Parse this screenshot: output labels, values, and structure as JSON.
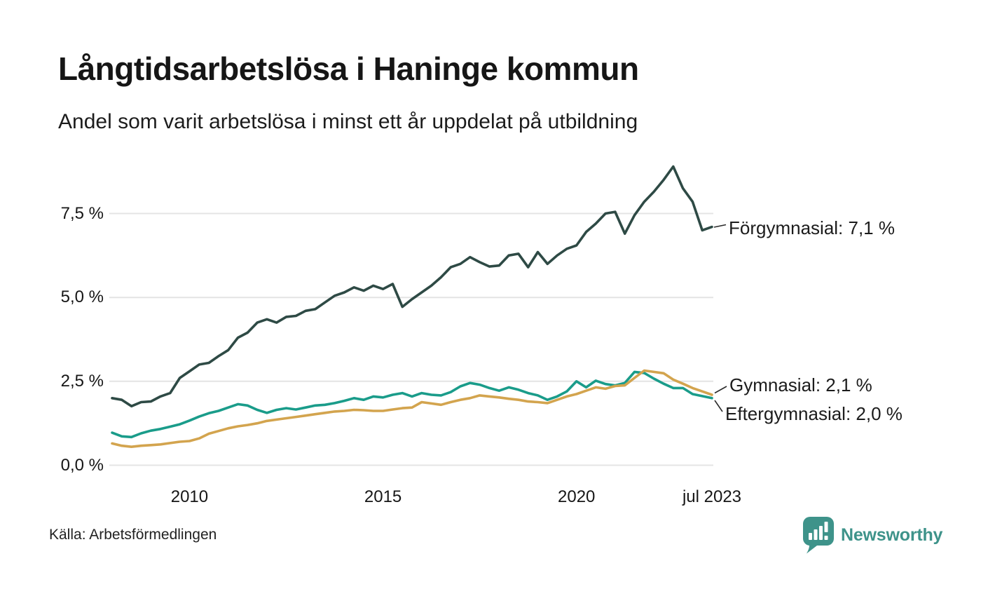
{
  "header": {
    "title": "Långtidsarbetslösa i Haninge kommun",
    "subtitle": "Andel som varit arbetslösa i minst ett år uppdelat på utbildning"
  },
  "source": {
    "label": "Källa: Arbetsförmedlingen"
  },
  "branding": {
    "name": "Newsworthy",
    "color": "#3e938a",
    "icon": "newsworthy-speech-bubble-bar-chart-icon"
  },
  "chart_data": {
    "type": "line",
    "title": "Långtidsarbetslösa i Haninge kommun",
    "subtitle": "Andel som varit arbetslösa i minst ett år uppdelat på utbildning",
    "unit": "%",
    "grid": "horizontal",
    "legend": "end-of-line-labels",
    "xlim": [
      2008,
      2023.5
    ],
    "ylim": [
      0,
      9.3
    ],
    "x": [
      2008.0,
      2008.25,
      2008.5,
      2008.75,
      2009.0,
      2009.25,
      2009.5,
      2009.75,
      2010.0,
      2010.25,
      2010.5,
      2010.75,
      2011.0,
      2011.25,
      2011.5,
      2011.75,
      2012.0,
      2012.25,
      2012.5,
      2012.75,
      2013.0,
      2013.25,
      2013.5,
      2013.75,
      2014.0,
      2014.25,
      2014.5,
      2014.75,
      2015.0,
      2015.25,
      2015.5,
      2015.75,
      2016.0,
      2016.25,
      2016.5,
      2016.75,
      2017.0,
      2017.25,
      2017.5,
      2017.75,
      2018.0,
      2018.25,
      2018.5,
      2018.75,
      2019.0,
      2019.25,
      2019.5,
      2019.75,
      2020.0,
      2020.25,
      2020.5,
      2020.75,
      2021.0,
      2021.25,
      2021.5,
      2021.75,
      2022.0,
      2022.25,
      2022.5,
      2022.75,
      2023.0,
      2023.25,
      2023.5
    ],
    "series": [
      {
        "name": "Förgymnasial",
        "color": "#2e4a45",
        "end_label": "Förgymnasial: 7,1 %",
        "end_value_label": "7,1 %",
        "end_value": 7.1,
        "values": [
          2.0,
          1.95,
          1.76,
          1.88,
          1.9,
          2.05,
          2.15,
          2.6,
          2.8,
          3.0,
          3.05,
          3.25,
          3.43,
          3.8,
          3.95,
          4.25,
          4.35,
          4.25,
          4.42,
          4.45,
          4.6,
          4.65,
          4.85,
          5.05,
          5.15,
          5.3,
          5.2,
          5.35,
          5.25,
          5.4,
          4.72,
          4.95,
          5.15,
          5.35,
          5.6,
          5.9,
          6.0,
          6.2,
          6.05,
          5.92,
          5.95,
          6.25,
          6.3,
          5.9,
          6.35,
          6.0,
          6.25,
          6.45,
          6.55,
          6.95,
          7.2,
          7.5,
          7.55,
          6.9,
          7.45,
          7.85,
          8.15,
          8.5,
          8.9,
          8.25,
          7.85,
          7.0,
          7.1
        ]
      },
      {
        "name": "Gymnasial",
        "color": "#d3a44e",
        "end_label": "Gymnasial: 2,1 %",
        "end_value_label": "2,1 %",
        "end_value": 2.1,
        "values": [
          0.65,
          0.58,
          0.55,
          0.58,
          0.6,
          0.62,
          0.66,
          0.7,
          0.72,
          0.8,
          0.94,
          1.02,
          1.1,
          1.16,
          1.2,
          1.25,
          1.32,
          1.36,
          1.4,
          1.44,
          1.48,
          1.52,
          1.56,
          1.6,
          1.62,
          1.65,
          1.64,
          1.62,
          1.62,
          1.66,
          1.7,
          1.72,
          1.88,
          1.84,
          1.8,
          1.88,
          1.95,
          2.0,
          2.08,
          2.05,
          2.02,
          1.98,
          1.95,
          1.9,
          1.88,
          1.85,
          1.95,
          2.05,
          2.12,
          2.22,
          2.32,
          2.28,
          2.36,
          2.38,
          2.6,
          2.82,
          2.78,
          2.74,
          2.55,
          2.43,
          2.3,
          2.2,
          2.1
        ]
      },
      {
        "name": "Eftergymnasial",
        "color": "#1a9c8a",
        "end_label": "Eftergymnasial: 2,0 %",
        "end_value_label": "2,0 %",
        "end_value": 2.0,
        "values": [
          0.97,
          0.86,
          0.84,
          0.95,
          1.03,
          1.08,
          1.15,
          1.22,
          1.33,
          1.45,
          1.55,
          1.62,
          1.72,
          1.82,
          1.78,
          1.65,
          1.56,
          1.65,
          1.7,
          1.66,
          1.72,
          1.78,
          1.8,
          1.85,
          1.92,
          2.0,
          1.95,
          2.05,
          2.02,
          2.1,
          2.15,
          2.05,
          2.15,
          2.1,
          2.08,
          2.18,
          2.35,
          2.45,
          2.4,
          2.3,
          2.22,
          2.32,
          2.25,
          2.15,
          2.08,
          1.95,
          2.05,
          2.2,
          2.5,
          2.32,
          2.52,
          2.42,
          2.38,
          2.45,
          2.78,
          2.75,
          2.58,
          2.43,
          2.3,
          2.3,
          2.12,
          2.06,
          2.0
        ]
      }
    ],
    "y_ticks": [
      {
        "value": 0,
        "label": "0,0 %"
      },
      {
        "value": 2.5,
        "label": "2,5 %"
      },
      {
        "value": 5,
        "label": "5,0 %"
      },
      {
        "value": 7.5,
        "label": "7,5 %"
      }
    ],
    "x_ticks": [
      {
        "value": 2010,
        "label": "2010"
      },
      {
        "value": 2015,
        "label": "2015"
      },
      {
        "value": 2020,
        "label": "2020"
      },
      {
        "value": 2023.5,
        "label": "jul 2023"
      }
    ],
    "gridline_color": "#e4e4e4"
  }
}
